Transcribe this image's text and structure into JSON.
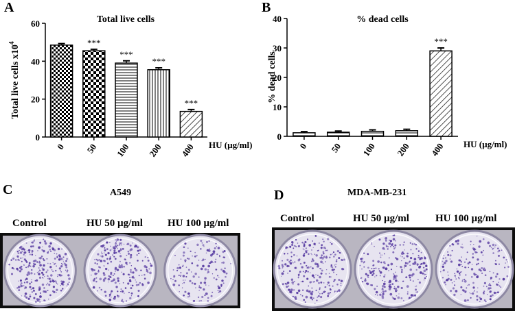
{
  "panels": {
    "A": "A",
    "B": "B",
    "C": "C",
    "D": "D"
  },
  "colony": {
    "left": {
      "cell_line": "A549",
      "labels": [
        "Control",
        "HU 50 µg/ml",
        "HU 100 µg/ml"
      ],
      "dish_density": [
        1.0,
        0.9,
        0.6
      ]
    },
    "right": {
      "cell_line": "MDA-MB-231",
      "labels": [
        "Control",
        "HU 50 µg/ml",
        "HU 100 µg/ml"
      ],
      "dish_density": [
        1.0,
        1.0,
        0.8
      ]
    }
  },
  "colors": {
    "stain": "#5b3fa3",
    "dish_bg": "#e7e4f0",
    "frame": "#000000"
  },
  "chart_data": [
    {
      "type": "bar",
      "title": "Total live cells",
      "ylabel": "Total live cells x10⁴",
      "xunit_label": "HU (µg/ml)",
      "categories": [
        "0",
        "50",
        "100",
        "200",
        "400"
      ],
      "values": [
        48.5,
        45.5,
        39,
        35.5,
        13.5
      ],
      "errors": [
        0.8,
        0.8,
        1.2,
        1.0,
        1.0
      ],
      "significance": [
        "",
        "***",
        "***",
        "***",
        "***"
      ],
      "patterns": [
        "checker-small",
        "checker-large",
        "horizontal",
        "vertical",
        "diagonal"
      ],
      "ylim": [
        0,
        60
      ],
      "yticks": [
        0,
        20,
        40,
        60
      ]
    },
    {
      "type": "bar",
      "title": "% dead cells",
      "ylabel": "% dead cells",
      "xunit_label": "HU (µg/ml)",
      "categories": [
        "0",
        "50",
        "100",
        "200",
        "400"
      ],
      "values": [
        1.2,
        1.4,
        1.7,
        1.9,
        29
      ],
      "errors": [
        0.4,
        0.4,
        0.5,
        0.5,
        1.0
      ],
      "significance": [
        "",
        "",
        "",
        "",
        "***"
      ],
      "patterns": [
        "horizontal",
        "horizontal",
        "horizontal",
        "horizontal",
        "diagonal"
      ],
      "ylim": [
        0,
        40
      ],
      "yticks": [
        0,
        10,
        20,
        30,
        40
      ]
    }
  ]
}
